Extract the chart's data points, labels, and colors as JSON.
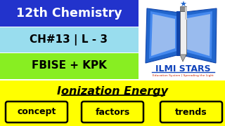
{
  "bg_white": "#ffffff",
  "bg_yellow": "#ffff00",
  "row1_bg": "#2233cc",
  "row1_text": "12th Chemistry",
  "row1_text_color": "#ffffff",
  "row2_bg": "#99ddee",
  "row2_text": "CH#13 | L - 3",
  "row2_text_color": "#000000",
  "row3_bg": "#88ee22",
  "row3_text": "FBISE + KPK",
  "row3_text_color": "#000000",
  "title_text": "Ionization Energy",
  "title_color": "#000000",
  "box_labels": [
    "concept",
    "factors",
    "trends"
  ],
  "box_bg": "#ffff00",
  "box_border": "#000000",
  "ilmi_text": "ILMI STARS",
  "ilmi_color": "#1144bb",
  "edu_text": "Education System | Spreading the Light",
  "edu_color": "#cc2200",
  "book_dark": "#1144aa",
  "book_mid": "#2266cc",
  "book_light": "#4488ee",
  "book_inner": "#99bbee",
  "marker_body": "#dddddd",
  "marker_dark": "#555555",
  "star_color": "#2266cc"
}
